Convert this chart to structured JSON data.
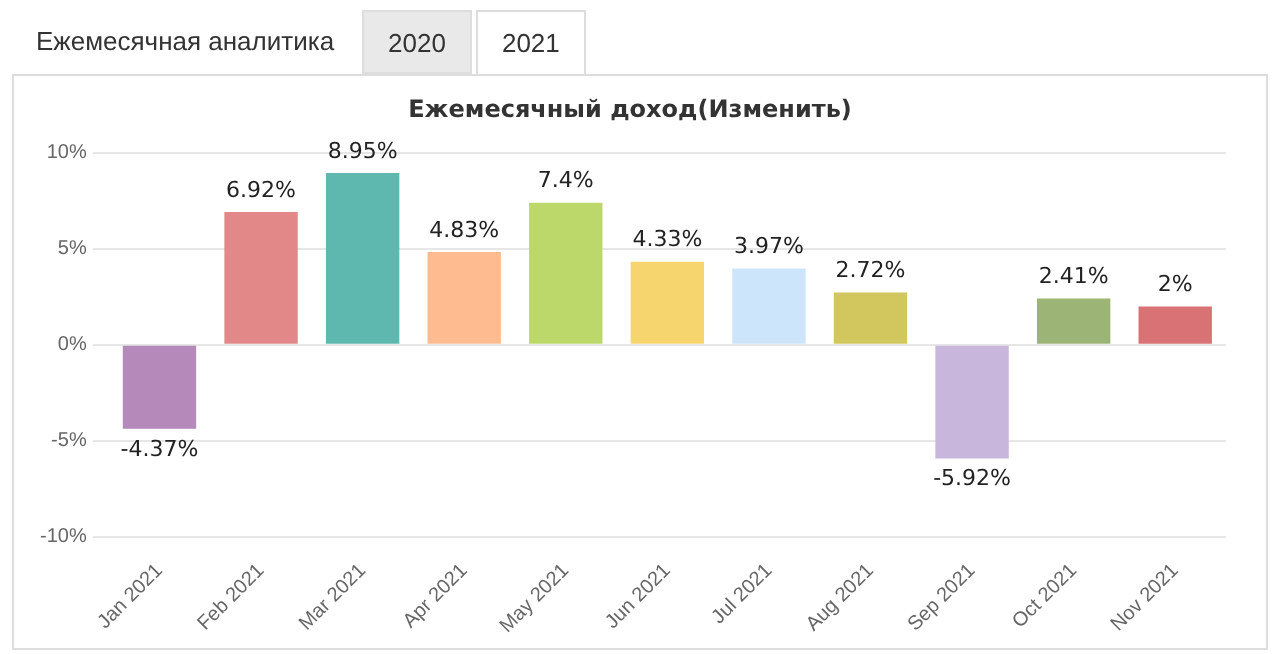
{
  "chart_data": {
    "type": "bar",
    "title": "Ежемесячный доход(Изменить)",
    "annotations": [
      "Ежемесячная аналитика",
      "2020",
      "2021"
    ],
    "categories": [
      "Jan 2021",
      "Feb 2021",
      "Mar 2021",
      "Apr 2021",
      "May 2021",
      "Jun 2021",
      "Jul 2021",
      "Aug 2021",
      "Sep 2021",
      "Oct 2021",
      "Nov 2021"
    ],
    "values": [
      -4.37,
      6.92,
      8.95,
      4.83,
      7.4,
      4.33,
      3.97,
      2.72,
      -5.92,
      2.41,
      2
    ],
    "value_labels": [
      "-4.37%",
      "6.92%",
      "8.95%",
      "4.83%",
      "7.4%",
      "4.33%",
      "3.97%",
      "2.72%",
      "-5.92%",
      "2.41%",
      "2%"
    ],
    "colors": [
      "#b589b9",
      "#e38888",
      "#5eb8b0",
      "#ffbb90",
      "#bcd86a",
      "#f7d56e",
      "#cce5fb",
      "#d2c75e",
      "#c9b6dc",
      "#9cb577",
      "#d97275"
    ],
    "ylim": [
      -10,
      10
    ],
    "yticks": [
      {
        "value": -10,
        "label": "-10%"
      },
      {
        "value": -5,
        "label": "-5%"
      },
      {
        "value": 0,
        "label": "0%"
      },
      {
        "value": 5,
        "label": "5%"
      },
      {
        "value": 10,
        "label": "10%"
      }
    ],
    "grid": "y"
  }
}
